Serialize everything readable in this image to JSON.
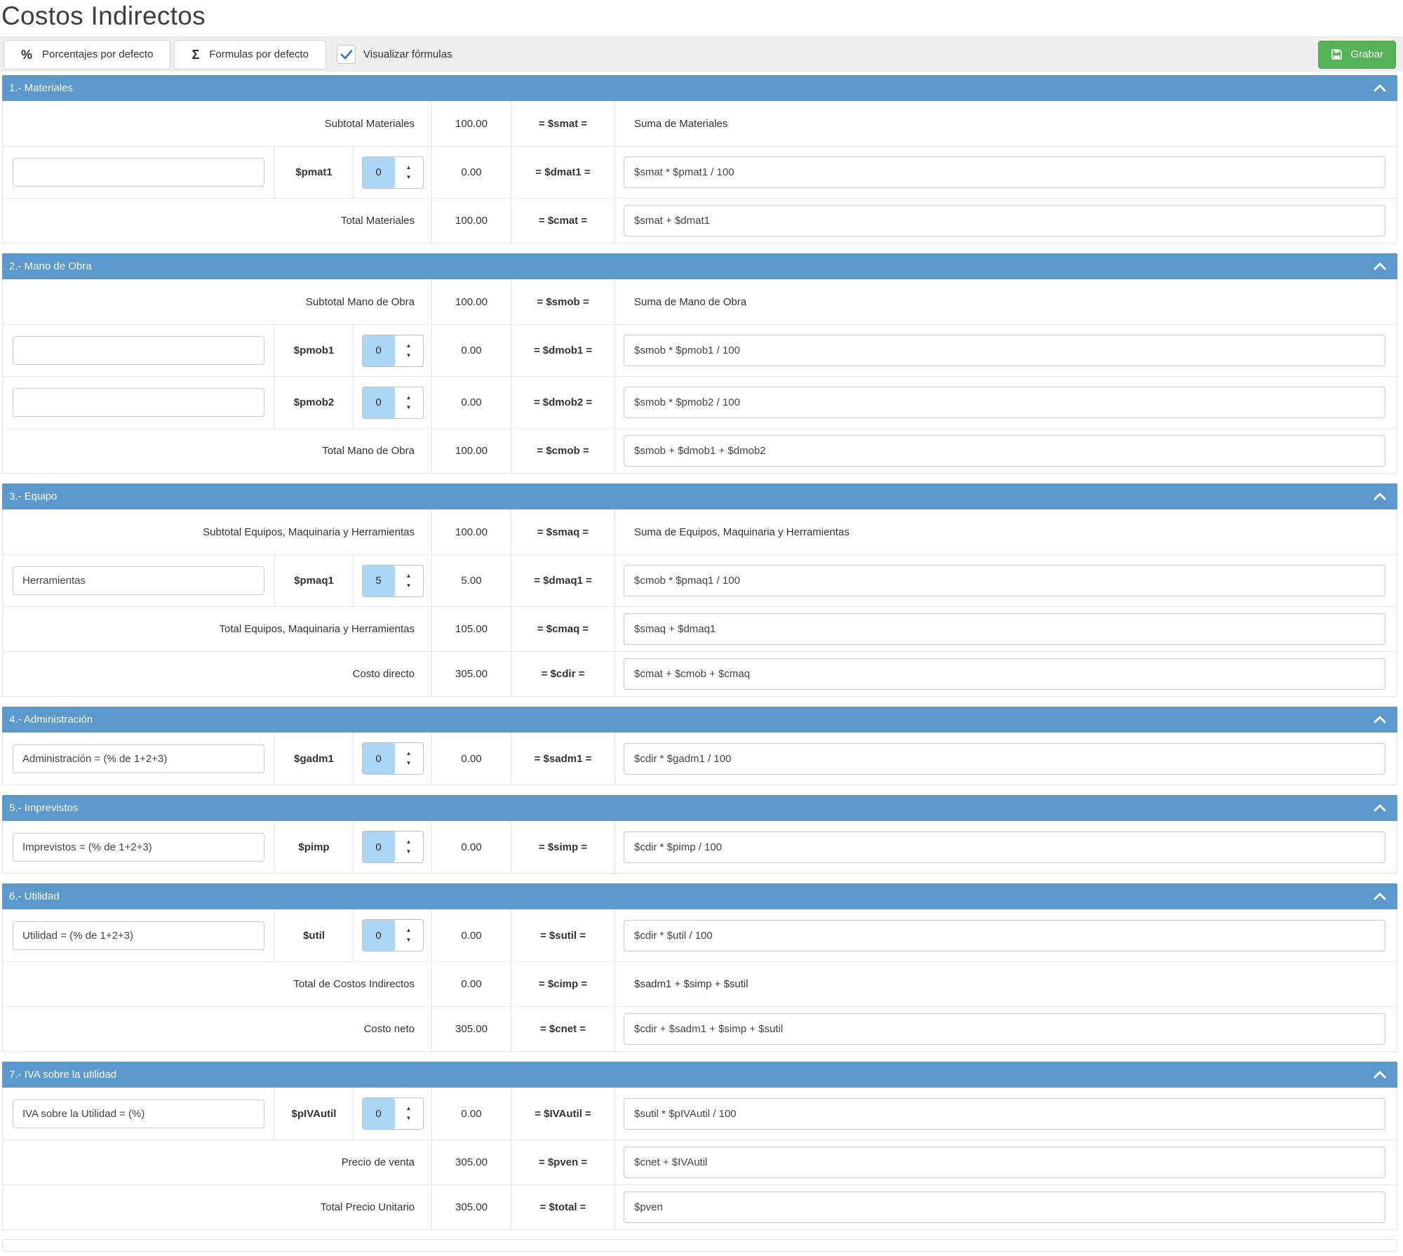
{
  "page": {
    "title": "Costos Indirectos"
  },
  "toolbar": {
    "percent_button": {
      "icon": "%",
      "label": "Porcentajes por defecto"
    },
    "sigma_button": {
      "icon": "Σ",
      "label": "Formulas por defecto"
    },
    "checkbox": {
      "label": "Visualizar fórmulas",
      "checked": true
    },
    "save_button": {
      "label": "Grabar"
    }
  },
  "icons": {
    "spinner_up": "▲",
    "spinner_down": "▼"
  },
  "colors": {
    "header_blue": "#5b98cb",
    "save_green": "#54b257",
    "spinner_highlight": "#abd5f5",
    "check_blue": "#3077bd"
  },
  "sections": [
    {
      "title": "1.- Materiales",
      "rows": [
        {
          "type": "summary",
          "label": "Subtotal Materiales",
          "value": "100.00",
          "var": "= $smat =",
          "formula": "Suma de Materiales",
          "formula_boxed": false
        },
        {
          "type": "input",
          "concept": "",
          "var_label": "$pmat1",
          "spin_value": "0",
          "value": "0.00",
          "var": "= $dmat1 =",
          "formula": "$smat * $pmat1 / 100",
          "formula_boxed": true
        },
        {
          "type": "summary",
          "label": "Total Materiales",
          "value": "100.00",
          "var": "= $cmat =",
          "formula": "$smat + $dmat1",
          "formula_boxed": true
        }
      ]
    },
    {
      "title": "2.- Mano de Obra",
      "rows": [
        {
          "type": "summary",
          "label": "Subtotal Mano de Obra",
          "value": "100.00",
          "var": "= $smob =",
          "formula": "Suma de Mano de Obra",
          "formula_boxed": false
        },
        {
          "type": "input",
          "concept": "",
          "var_label": "$pmob1",
          "spin_value": "0",
          "value": "0.00",
          "var": "= $dmob1 =",
          "formula": "$smob * $pmob1 / 100",
          "formula_boxed": true
        },
        {
          "type": "input",
          "concept": "",
          "var_label": "$pmob2",
          "spin_value": "0",
          "value": "0.00",
          "var": "= $dmob2 =",
          "formula": "$smob * $pmob2 / 100",
          "formula_boxed": true
        },
        {
          "type": "summary",
          "label": "Total Mano de Obra",
          "value": "100.00",
          "var": "= $cmob =",
          "formula": "$smob + $dmob1 + $dmob2",
          "formula_boxed": true
        }
      ]
    },
    {
      "title": "3.- Equipo",
      "rows": [
        {
          "type": "summary",
          "label": "Subtotal Equipos, Maquinaria y Herramientas",
          "value": "100.00",
          "var": "= $smaq =",
          "formula": "Suma de Equipos, Maquinaria y Herramientas",
          "formula_boxed": false
        },
        {
          "type": "input",
          "concept": "Herramientas",
          "var_label": "$pmaq1",
          "spin_value": "5",
          "value": "5.00",
          "var": "= $dmaq1 =",
          "formula": "$cmob * $pmaq1 / 100",
          "formula_boxed": true
        },
        {
          "type": "summary",
          "label": "Total Equipos, Maquinaria y Herramientas",
          "value": "105.00",
          "var": "= $cmaq =",
          "formula": "$smaq + $dmaq1",
          "formula_boxed": true
        },
        {
          "type": "summary",
          "label": "Costo directo",
          "value": "305.00",
          "var": "= $cdir =",
          "formula": "$cmat + $cmob + $cmaq",
          "formula_boxed": true
        }
      ]
    },
    {
      "title": "4.- Administración",
      "rows": [
        {
          "type": "input",
          "concept": "Administración = (% de 1+2+3)",
          "var_label": "$gadm1",
          "spin_value": "0",
          "value": "0.00",
          "var": "= $sadm1 =",
          "formula": "$cdir * $gadm1 / 100",
          "formula_boxed": true
        }
      ]
    },
    {
      "title": "5.- Imprevistos",
      "rows": [
        {
          "type": "input",
          "concept": "Imprevistos = (% de 1+2+3)",
          "var_label": "$pimp",
          "spin_value": "0",
          "value": "0.00",
          "var": "= $simp =",
          "formula": "$cdir * $pimp / 100",
          "formula_boxed": true
        }
      ]
    },
    {
      "title": "6.- Utilidad",
      "rows": [
        {
          "type": "input",
          "concept": "Utilidad = (% de 1+2+3)",
          "var_label": "$util",
          "spin_value": "0",
          "value": "0.00",
          "var": "= $sutil =",
          "formula": "$cdir * $util / 100",
          "formula_boxed": true
        },
        {
          "type": "summary",
          "label": "Total de Costos Indirectos",
          "value": "0.00",
          "var": "= $cimp =",
          "formula": "$sadm1 + $simp + $sutil",
          "formula_boxed": false
        },
        {
          "type": "summary",
          "label": "Costo neto",
          "value": "305.00",
          "var": "= $cnet =",
          "formula": "$cdir + $sadm1 + $simp + $sutil",
          "formula_boxed": true
        }
      ]
    },
    {
      "title": "7.- IVA sobre la utilidad",
      "rows": [
        {
          "type": "input",
          "concept": "IVA sobre la Utilidad = (%)",
          "var_label": "$pIVAutil",
          "spin_value": "0",
          "value": "0.00",
          "var": "= $IVAutil =",
          "formula": "$sutil * $pIVAutil / 100",
          "formula_boxed": true
        },
        {
          "type": "summary",
          "label": "Precio de venta",
          "value": "305.00",
          "var": "= $pven =",
          "formula": "$cnet + $IVAutil",
          "formula_boxed": true
        },
        {
          "type": "summary",
          "label": "Total Precio Unitario",
          "value": "305.00",
          "var": "= $total =",
          "formula": "$pven",
          "formula_boxed": true
        }
      ]
    }
  ]
}
